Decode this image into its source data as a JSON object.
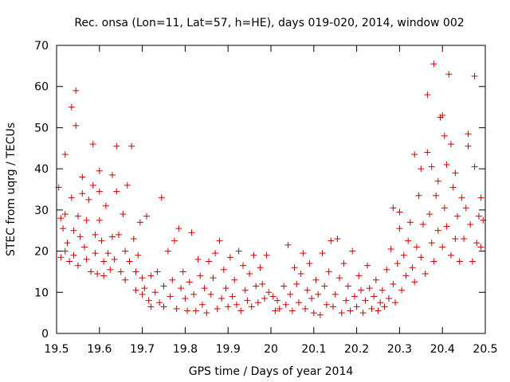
{
  "chart_data": {
    "type": "scatter",
    "title": "Rec. onsa (Lon=11, Lat=57, h=HE), days 019-020, 2014, window 002",
    "xlabel": "GPS time / Days of year 2014",
    "ylabel": "STEC from uqrg / TECUs",
    "xlim": [
      19.5,
      20.5
    ],
    "ylim": [
      0,
      70
    ],
    "xticks": [
      "19.5",
      "19.6",
      "19.7",
      "19.8",
      "19.9",
      "20",
      "20.1",
      "20.2",
      "20.3",
      "20.4",
      "20.5"
    ],
    "yticks": [
      "0",
      "10",
      "20",
      "30",
      "40",
      "50",
      "60",
      "70"
    ],
    "marker": "plus",
    "color": "#cc0000",
    "grid": false,
    "series": [
      {
        "name": "STEC",
        "points": [
          [
            19.505,
            35.5
          ],
          [
            19.51,
            28.0
          ],
          [
            19.51,
            18.5
          ],
          [
            19.515,
            25.5
          ],
          [
            19.52,
            43.5
          ],
          [
            19.52,
            29.0
          ],
          [
            19.52,
            20.0
          ],
          [
            19.525,
            22.0
          ],
          [
            19.53,
            17.5
          ],
          [
            19.535,
            55.0
          ],
          [
            19.535,
            33.0
          ],
          [
            19.54,
            25.0
          ],
          [
            19.54,
            19.0
          ],
          [
            19.545,
            59.0
          ],
          [
            19.545,
            50.5
          ],
          [
            19.55,
            28.5
          ],
          [
            19.55,
            16.5
          ],
          [
            19.555,
            23.5
          ],
          [
            19.56,
            38.0
          ],
          [
            19.56,
            34.0
          ],
          [
            19.565,
            21.0
          ],
          [
            19.57,
            27.5
          ],
          [
            19.57,
            18.0
          ],
          [
            19.575,
            32.5
          ],
          [
            19.58,
            15.0
          ],
          [
            19.585,
            46.0
          ],
          [
            19.585,
            36.0
          ],
          [
            19.59,
            24.0
          ],
          [
            19.59,
            19.5
          ],
          [
            19.595,
            14.5
          ],
          [
            19.6,
            39.5
          ],
          [
            19.6,
            34.5
          ],
          [
            19.6,
            27.5
          ],
          [
            19.605,
            22.5
          ],
          [
            19.61,
            17.5
          ],
          [
            19.61,
            14.0
          ],
          [
            19.615,
            31.0
          ],
          [
            19.62,
            19.5
          ],
          [
            19.625,
            15.5
          ],
          [
            19.63,
            38.5
          ],
          [
            19.63,
            23.5
          ],
          [
            19.635,
            18.0
          ],
          [
            19.64,
            45.5
          ],
          [
            19.64,
            34.5
          ],
          [
            19.645,
            24.0
          ],
          [
            19.65,
            15.0
          ],
          [
            19.655,
            29.0
          ],
          [
            19.66,
            20.0
          ],
          [
            19.66,
            13.0
          ],
          [
            19.665,
            36.0
          ],
          [
            19.67,
            17.5
          ],
          [
            19.675,
            45.5
          ],
          [
            19.68,
            23.0
          ],
          [
            19.685,
            15.0
          ],
          [
            19.685,
            10.5
          ],
          [
            19.69,
            19.0
          ],
          [
            19.695,
            27.0
          ],
          [
            19.7,
            13.5
          ],
          [
            19.7,
            9.5
          ],
          [
            19.705,
            11.0
          ],
          [
            19.71,
            28.5
          ],
          [
            19.715,
            8.0
          ],
          [
            19.72,
            14.0
          ],
          [
            19.72,
            6.5
          ],
          [
            19.73,
            10.0
          ],
          [
            19.735,
            15.0
          ],
          [
            19.74,
            7.5
          ],
          [
            19.745,
            33.0
          ],
          [
            19.75,
            11.5
          ],
          [
            19.75,
            6.5
          ],
          [
            19.76,
            20.0
          ],
          [
            19.765,
            9.0
          ],
          [
            19.77,
            13.0
          ],
          [
            19.775,
            22.5
          ],
          [
            19.78,
            6.0
          ],
          [
            19.785,
            25.5
          ],
          [
            19.79,
            11.0
          ],
          [
            19.795,
            15.0
          ],
          [
            19.8,
            8.5
          ],
          [
            19.805,
            5.5
          ],
          [
            19.81,
            12.5
          ],
          [
            19.815,
            24.5
          ],
          [
            19.82,
            9.5
          ],
          [
            19.825,
            5.5
          ],
          [
            19.83,
            18.0
          ],
          [
            19.835,
            14.0
          ],
          [
            19.84,
            7.0
          ],
          [
            19.845,
            11.0
          ],
          [
            19.85,
            5.0
          ],
          [
            19.855,
            17.5
          ],
          [
            19.86,
            9.5
          ],
          [
            19.865,
            13.5
          ],
          [
            19.87,
            19.5
          ],
          [
            19.875,
            6.0
          ],
          [
            19.88,
            22.5
          ],
          [
            19.885,
            8.5
          ],
          [
            19.89,
            15.5
          ],
          [
            19.895,
            11.0
          ],
          [
            19.9,
            6.5
          ],
          [
            19.905,
            18.5
          ],
          [
            19.91,
            9.0
          ],
          [
            19.915,
            13.0
          ],
          [
            19.92,
            7.0
          ],
          [
            19.925,
            20.0
          ],
          [
            19.93,
            5.5
          ],
          [
            19.935,
            16.5
          ],
          [
            19.94,
            10.5
          ],
          [
            19.945,
            8.0
          ],
          [
            19.95,
            14.5
          ],
          [
            19.955,
            6.5
          ],
          [
            19.96,
            19.0
          ],
          [
            19.965,
            11.5
          ],
          [
            19.97,
            7.5
          ],
          [
            19.975,
            16.0
          ],
          [
            19.98,
            12.0
          ],
          [
            19.985,
            8.5
          ],
          [
            19.99,
            19.0
          ],
          [
            19.995,
            10.0
          ],
          [
            20.005,
            9.0
          ],
          [
            20.01,
            5.5
          ],
          [
            20.015,
            8.0
          ],
          [
            20.02,
            6.0
          ],
          [
            20.03,
            11.5
          ],
          [
            20.035,
            7.0
          ],
          [
            20.04,
            21.5
          ],
          [
            20.045,
            9.5
          ],
          [
            20.05,
            5.5
          ],
          [
            20.055,
            16.0
          ],
          [
            20.06,
            12.0
          ],
          [
            20.065,
            7.5
          ],
          [
            20.07,
            14.5
          ],
          [
            20.075,
            19.5
          ],
          [
            20.08,
            6.0
          ],
          [
            20.085,
            10.5
          ],
          [
            20.09,
            17.0
          ],
          [
            20.095,
            8.5
          ],
          [
            20.1,
            5.0
          ],
          [
            20.105,
            13.0
          ],
          [
            20.11,
            9.5
          ],
          [
            20.115,
            4.5
          ],
          [
            20.12,
            19.5
          ],
          [
            20.125,
            11.5
          ],
          [
            20.13,
            7.0
          ],
          [
            20.135,
            15.0
          ],
          [
            20.14,
            22.5
          ],
          [
            20.145,
            6.5
          ],
          [
            20.15,
            9.5
          ],
          [
            20.155,
            23.0
          ],
          [
            20.16,
            13.5
          ],
          [
            20.165,
            5.0
          ],
          [
            20.17,
            17.0
          ],
          [
            20.175,
            8.0
          ],
          [
            20.18,
            11.5
          ],
          [
            20.185,
            5.5
          ],
          [
            20.19,
            20.0
          ],
          [
            20.195,
            9.0
          ],
          [
            20.2,
            6.5
          ],
          [
            20.205,
            14.0
          ],
          [
            20.21,
            10.5
          ],
          [
            20.215,
            5.0
          ],
          [
            20.22,
            8.0
          ],
          [
            20.225,
            16.5
          ],
          [
            20.23,
            11.0
          ],
          [
            20.235,
            6.0
          ],
          [
            20.24,
            9.0
          ],
          [
            20.245,
            13.0
          ],
          [
            20.25,
            5.5
          ],
          [
            20.255,
            7.5
          ],
          [
            20.26,
            10.5
          ],
          [
            20.265,
            6.5
          ],
          [
            20.27,
            15.5
          ],
          [
            20.275,
            8.5
          ],
          [
            20.28,
            20.5
          ],
          [
            20.285,
            12.0
          ],
          [
            20.285,
            30.5
          ],
          [
            20.29,
            7.5
          ],
          [
            20.295,
            17.0
          ],
          [
            20.3,
            25.5
          ],
          [
            20.3,
            29.5
          ],
          [
            20.305,
            10.5
          ],
          [
            20.31,
            19.0
          ],
          [
            20.315,
            14.0
          ],
          [
            20.32,
            22.5
          ],
          [
            20.325,
            27.0
          ],
          [
            20.33,
            16.0
          ],
          [
            20.335,
            43.5
          ],
          [
            20.335,
            12.5
          ],
          [
            20.34,
            21.0
          ],
          [
            20.345,
            33.5
          ],
          [
            20.35,
            40.0
          ],
          [
            20.35,
            18.5
          ],
          [
            20.355,
            26.5
          ],
          [
            20.36,
            14.5
          ],
          [
            20.365,
            58.0
          ],
          [
            20.365,
            44.0
          ],
          [
            20.37,
            29.0
          ],
          [
            20.375,
            22.0
          ],
          [
            20.375,
            40.5
          ],
          [
            20.38,
            65.5
          ],
          [
            20.38,
            17.5
          ],
          [
            20.385,
            33.5
          ],
          [
            20.39,
            25.0
          ],
          [
            20.39,
            37.0
          ],
          [
            20.395,
            52.5
          ],
          [
            20.4,
            53.0
          ],
          [
            20.4,
            21.0
          ],
          [
            20.405,
            48.0
          ],
          [
            20.405,
            30.5
          ],
          [
            20.41,
            41.0
          ],
          [
            20.41,
            26.0
          ],
          [
            20.415,
            63.0
          ],
          [
            20.42,
            46.0
          ],
          [
            20.42,
            19.0
          ],
          [
            20.425,
            35.5
          ],
          [
            20.43,
            23.0
          ],
          [
            20.43,
            39.0
          ],
          [
            20.435,
            28.5
          ],
          [
            20.44,
            17.5
          ],
          [
            20.445,
            33.0
          ],
          [
            20.45,
            23.0
          ],
          [
            20.455,
            30.5
          ],
          [
            20.46,
            45.5
          ],
          [
            20.46,
            48.5
          ],
          [
            20.465,
            26.5
          ],
          [
            20.47,
            17.5
          ],
          [
            20.475,
            62.5
          ],
          [
            20.475,
            40.5
          ],
          [
            20.48,
            22.0
          ],
          [
            20.485,
            28.5
          ],
          [
            20.49,
            33.0
          ],
          [
            20.49,
            21.0
          ],
          [
            20.495,
            27.5
          ]
        ]
      }
    ]
  }
}
